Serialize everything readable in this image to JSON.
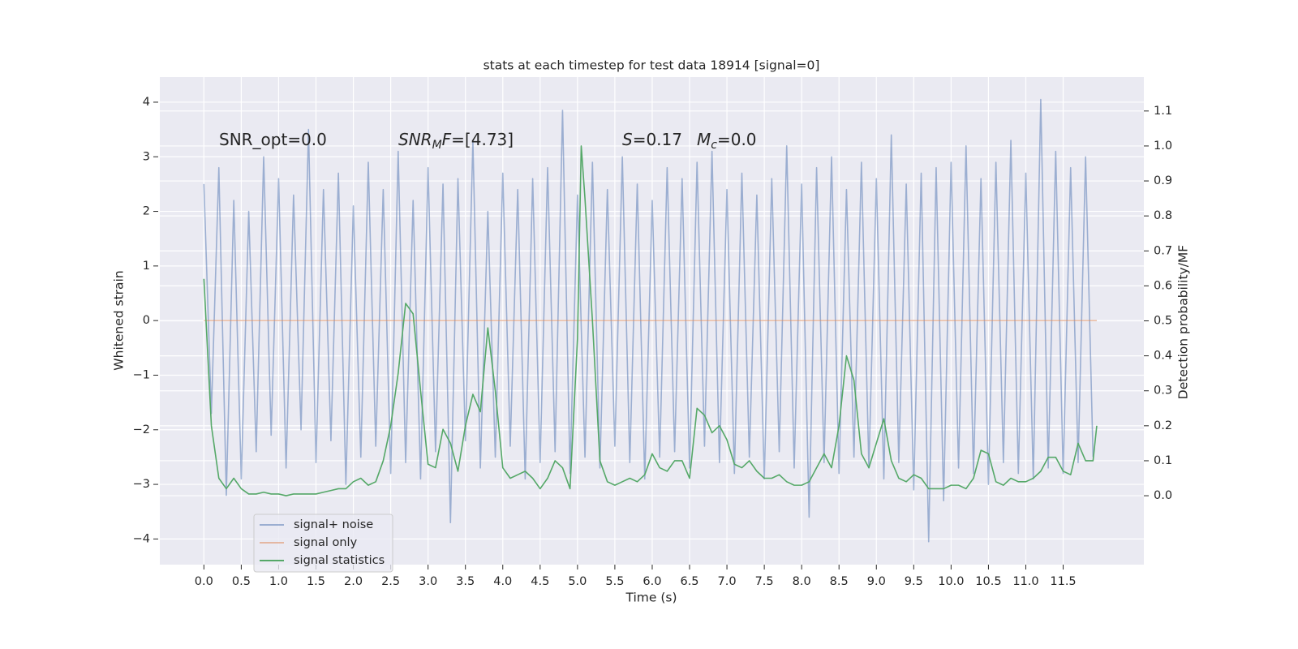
{
  "chart_data": {
    "type": "line",
    "title": "stats at each timestep for test data 18914 [signal=0]",
    "xlabel": "Time (s)",
    "ylabel": "Whitened strain",
    "y2label": "Detection probability/MF",
    "xlim": [
      -0.59,
      12.58
    ],
    "ylim": [
      -4.47,
      4.46
    ],
    "y2lim": [
      -0.197,
      1.197
    ],
    "xticks": [
      {
        "value": 0,
        "label": "0.0"
      },
      0.5,
      {
        "value": 1,
        "label": "1.0"
      },
      1.5,
      {
        "value": 2,
        "label": "2.0"
      },
      2.5,
      {
        "value": 3,
        "label": "3.0"
      },
      3.5,
      {
        "value": 4,
        "label": "4.0"
      },
      4.5,
      {
        "value": 5,
        "label": "5.0"
      },
      5.5,
      {
        "value": 6,
        "label": "6.0"
      },
      6.5,
      {
        "value": 7,
        "label": "7.0"
      },
      7.5,
      {
        "value": 8,
        "label": "8.0"
      },
      8.5,
      {
        "value": 9,
        "label": "9.0"
      },
      9.5,
      {
        "value": 10,
        "label": "10.0"
      },
      10.5,
      {
        "value": 11,
        "label": "11.0"
      },
      11.5
    ],
    "yticks": [
      {
        "value": -4,
        "label": "−4"
      },
      {
        "value": -3,
        "label": "−3"
      },
      {
        "value": -2,
        "label": "−2"
      },
      {
        "value": -1,
        "label": "−1"
      },
      0,
      1,
      2,
      3,
      4
    ],
    "y2ticks": [
      {
        "value": 0,
        "label": "0.0"
      },
      0.1,
      0.2,
      0.3,
      0.4,
      0.5,
      0.6,
      0.7,
      0.8,
      0.9,
      {
        "value": 1,
        "label": "1.0"
      },
      1.1
    ],
    "grid": true,
    "legend": "lower left",
    "annotations": [
      {
        "parts": [
          {
            "text": "SNR_opt=0.0"
          }
        ]
      },
      {
        "parts": [
          {
            "text": "SNR",
            "style": "italic"
          },
          {
            "text": "M",
            "style": "sub-italic"
          },
          {
            "text": "F",
            "style": "italic"
          },
          {
            "text": "=[4.73]"
          }
        ]
      },
      {
        "parts": [
          {
            "text": "S",
            "style": "italic"
          },
          {
            "text": "=0.17"
          }
        ]
      },
      {
        "parts": [
          {
            "text": "M",
            "style": "italic"
          },
          {
            "text": "c",
            "style": "sub-italic"
          },
          {
            "text": "=0.0"
          }
        ]
      }
    ],
    "series": [
      {
        "name": "signal+ noise",
        "color": "#4c72b0",
        "opacity": 0.5,
        "x": [
          0,
          0.1,
          0.2,
          0.3,
          0.4,
          0.5,
          0.6,
          0.7,
          0.8,
          0.9,
          1,
          1.1,
          1.2,
          1.3,
          1.4,
          1.5,
          1.6,
          1.7,
          1.8,
          1.9,
          2,
          2.1,
          2.2,
          2.3,
          2.4,
          2.5,
          2.6,
          2.7,
          2.8,
          2.9,
          3,
          3.1,
          3.2,
          3.3,
          3.4,
          3.5,
          3.6,
          3.7,
          3.8,
          3.9,
          4,
          4.1,
          4.2,
          4.3,
          4.4,
          4.5,
          4.6,
          4.7,
          4.8,
          4.9,
          5,
          5.1,
          5.2,
          5.3,
          5.4,
          5.5,
          5.6,
          5.7,
          5.8,
          5.9,
          6,
          6.1,
          6.2,
          6.3,
          6.4,
          6.5,
          6.6,
          6.7,
          6.8,
          6.9,
          7,
          7.1,
          7.2,
          7.3,
          7.4,
          7.5,
          7.6,
          7.7,
          7.8,
          7.9,
          8,
          8.1,
          8.2,
          8.3,
          8.4,
          8.5,
          8.6,
          8.7,
          8.8,
          8.9,
          9,
          9.1,
          9.2,
          9.3,
          9.4,
          9.5,
          9.6,
          9.7,
          9.8,
          9.9,
          10,
          10.1,
          10.2,
          10.3,
          10.4,
          10.5,
          10.6,
          10.7,
          10.8,
          10.9,
          11,
          11.1,
          11.2,
          11.3,
          11.4,
          11.5,
          11.6,
          11.7,
          11.8,
          11.9
        ],
        "values": [
          2.5,
          -1.7,
          2.8,
          -3.2,
          2.2,
          -2.9,
          2.0,
          -2.4,
          3.0,
          -2.1,
          2.6,
          -2.7,
          2.3,
          -2.0,
          3.5,
          -2.6,
          2.4,
          -2.2,
          2.7,
          -3.0,
          2.1,
          -2.5,
          2.9,
          -2.3,
          2.4,
          -2.8,
          3.1,
          -2.6,
          2.2,
          -2.9,
          2.8,
          -2.4,
          2.5,
          -3.7,
          2.6,
          -2.2,
          3.3,
          -2.7,
          2.0,
          -2.5,
          2.7,
          -2.3,
          2.4,
          -2.9,
          2.6,
          -2.6,
          2.8,
          -2.4,
          3.85,
          -2.8,
          2.3,
          -2.5,
          2.9,
          -2.7,
          2.4,
          -2.3,
          3.0,
          -2.6,
          2.5,
          -2.9,
          2.2,
          -2.5,
          2.8,
          -2.4,
          2.6,
          -2.7,
          2.9,
          -2.3,
          3.1,
          -2.6,
          2.4,
          -2.8,
          2.7,
          -2.5,
          2.3,
          -2.9,
          2.6,
          -2.4,
          3.2,
          -2.7,
          2.5,
          -3.6,
          2.8,
          -2.6,
          3.0,
          -2.8,
          2.4,
          -2.5,
          2.9,
          -2.7,
          2.6,
          -2.9,
          3.4,
          -2.6,
          2.5,
          -3.1,
          2.7,
          -4.05,
          2.8,
          -3.3,
          2.9,
          -2.7,
          3.2,
          -2.8,
          2.6,
          -3.0,
          2.9,
          -2.6,
          3.3,
          -2.8,
          2.7,
          -2.9,
          4.05,
          -2.7,
          3.1,
          -2.8,
          2.8,
          -2.6,
          3.0,
          -2.5
        ]
      },
      {
        "name": "signal only",
        "color": "#dd8452",
        "opacity": 0.5,
        "x": [
          0,
          11.95
        ],
        "values": [
          0,
          0
        ]
      },
      {
        "name": "signal statistics",
        "color": "#55a868",
        "opacity": 1,
        "axis": "y2",
        "x": [
          0,
          0.1,
          0.2,
          0.3,
          0.4,
          0.5,
          0.6,
          0.7,
          0.8,
          0.9,
          1,
          1.1,
          1.2,
          1.3,
          1.4,
          1.5,
          1.6,
          1.7,
          1.8,
          1.9,
          2,
          2.1,
          2.2,
          2.3,
          2.4,
          2.5,
          2.6,
          2.7,
          2.8,
          2.9,
          3,
          3.1,
          3.2,
          3.3,
          3.4,
          3.5,
          3.6,
          3.7,
          3.8,
          3.9,
          4,
          4.1,
          4.2,
          4.3,
          4.4,
          4.5,
          4.6,
          4.7,
          4.8,
          4.9,
          5,
          5.05,
          5.1,
          5.2,
          5.3,
          5.4,
          5.5,
          5.6,
          5.7,
          5.8,
          5.9,
          6,
          6.1,
          6.2,
          6.3,
          6.4,
          6.5,
          6.6,
          6.7,
          6.8,
          6.9,
          7,
          7.1,
          7.2,
          7.3,
          7.4,
          7.5,
          7.6,
          7.7,
          7.8,
          7.9,
          8,
          8.1,
          8.2,
          8.3,
          8.4,
          8.5,
          8.6,
          8.7,
          8.8,
          8.9,
          9,
          9.1,
          9.2,
          9.3,
          9.4,
          9.5,
          9.6,
          9.7,
          9.8,
          9.9,
          10,
          10.1,
          10.2,
          10.3,
          10.4,
          10.5,
          10.6,
          10.7,
          10.8,
          10.9,
          11,
          11.1,
          11.2,
          11.3,
          11.4,
          11.5,
          11.6,
          11.7,
          11.8,
          11.9,
          11.95
        ],
        "values": [
          0.62,
          0.2,
          0.05,
          0.02,
          0.05,
          0.02,
          0.005,
          0.005,
          0.01,
          0.005,
          0.005,
          0.0,
          0.005,
          0.005,
          0.005,
          0.005,
          0.01,
          0.015,
          0.02,
          0.02,
          0.04,
          0.05,
          0.03,
          0.04,
          0.1,
          0.2,
          0.35,
          0.55,
          0.52,
          0.3,
          0.09,
          0.08,
          0.19,
          0.15,
          0.07,
          0.2,
          0.29,
          0.24,
          0.48,
          0.3,
          0.08,
          0.05,
          0.06,
          0.07,
          0.05,
          0.02,
          0.05,
          0.1,
          0.08,
          0.02,
          0.45,
          1.0,
          0.85,
          0.5,
          0.1,
          0.04,
          0.03,
          0.04,
          0.05,
          0.04,
          0.06,
          0.12,
          0.08,
          0.07,
          0.1,
          0.1,
          0.05,
          0.25,
          0.23,
          0.18,
          0.2,
          0.16,
          0.09,
          0.08,
          0.1,
          0.07,
          0.05,
          0.05,
          0.06,
          0.04,
          0.03,
          0.03,
          0.04,
          0.08,
          0.12,
          0.08,
          0.2,
          0.4,
          0.33,
          0.12,
          0.08,
          0.15,
          0.22,
          0.1,
          0.05,
          0.04,
          0.06,
          0.05,
          0.02,
          0.02,
          0.02,
          0.03,
          0.03,
          0.02,
          0.05,
          0.13,
          0.12,
          0.04,
          0.03,
          0.05,
          0.04,
          0.04,
          0.05,
          0.07,
          0.11,
          0.11,
          0.07,
          0.06,
          0.15,
          0.1,
          0.1,
          0.2
        ]
      }
    ]
  }
}
